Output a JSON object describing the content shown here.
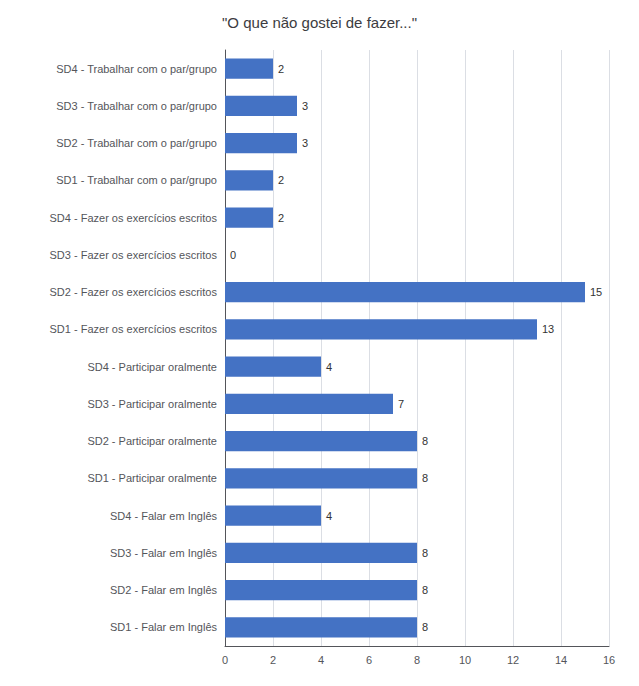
{
  "chart_data": {
    "type": "bar",
    "title": "\"O que não gostei de fazer...\"",
    "orientation": "horizontal",
    "categories": [
      "SD4 - Trabalhar com o par/grupo",
      "SD3 - Trabalhar com o par/grupo",
      "SD2 - Trabalhar com o par/grupo",
      "SD1 - Trabalhar com o par/grupo",
      "SD4 - Fazer os exercícios escritos",
      "SD3 - Fazer os exercícios escritos",
      "SD2 - Fazer os exercícios escritos",
      "SD1 - Fazer os exercícios escritos",
      "    SD4 - Participar oralmente",
      "    SD3 - Participar oralmente",
      "    SD2 - Participar oralmente",
      "    SD1 - Participar oralmente",
      "        SD4 - Falar em Inglês",
      "        SD3 - Falar em Inglês",
      "        SD2 - Falar em Inglês",
      "        SD1 - Falar em Inglês"
    ],
    "values": [
      2,
      3,
      3,
      2,
      2,
      0,
      15,
      13,
      4,
      7,
      8,
      8,
      4,
      8,
      8,
      8
    ],
    "color": "#4472C4",
    "xlim": [
      0,
      16
    ],
    "xticks": [
      0,
      2,
      4,
      6,
      8,
      10,
      12,
      14,
      16
    ],
    "grid": true,
    "data_labels": true
  }
}
